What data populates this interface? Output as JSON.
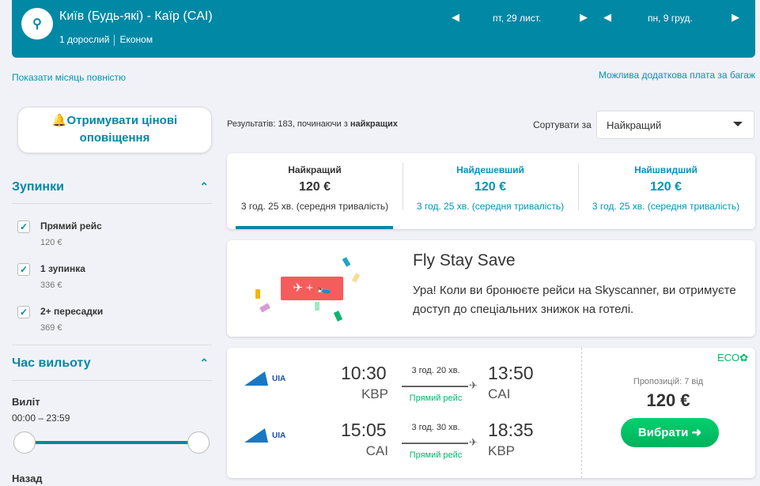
{
  "header": {
    "route": "Київ (Будь-які) - Каїр (CAI)",
    "passengers": "1 дорослий",
    "cabin": "Економ",
    "depart_date": "пт, 29 лист.",
    "return_date": "пн, 9 груд."
  },
  "links": {
    "show_month": "Показати місяць повністю",
    "baggage": "Можлива додаткова плата за багаж"
  },
  "sidebar": {
    "alert": "Отримувати цінові оповіщення",
    "stops_title": "Зупинки",
    "stops": [
      {
        "label": "Прямий рейс",
        "price": "120 €"
      },
      {
        "label": "1 зупинка",
        "price": "336 €"
      },
      {
        "label": "2+ пересадки",
        "price": "369 €"
      }
    ],
    "time_title": "Час вильоту",
    "outbound": "Виліт",
    "outbound_range": "00:00 – 23:59",
    "return": "Назад"
  },
  "results": {
    "summary_prefix": "Результатів: 183, починаючи з ",
    "summary_bold": "найкращих",
    "sort_label": "Сортувати за",
    "sort_value": "Найкращий"
  },
  "tabs": [
    {
      "title": "Найкращий",
      "price": "120 €",
      "duration": "3 год. 25 хв. (середня тривалість)"
    },
    {
      "title": "Найдешевший",
      "price": "120 €",
      "duration": "3 год. 25 хв. (середня тривалість)"
    },
    {
      "title": "Найшвидший",
      "price": "120 €",
      "duration": "3 год. 25 хв. (середня тривалість)"
    }
  ],
  "promo": {
    "title": "Fly Stay Save",
    "text": "Ура! Коли ви бронюєте рейси на Skyscanner, ви отримуєте доступ до спеціальних знижок на готелі."
  },
  "ticket": {
    "eco": "ECO",
    "offers": "Пропозицій: 7 від",
    "price": "120 €",
    "select": "Вибрати ➜",
    "legs": [
      {
        "airline": "UIA",
        "dep": "10:30",
        "dep_ap": "KBP",
        "dur": "3 год. 20 хв.",
        "type": "Прямий рейс",
        "arr": "13:50",
        "arr_ap": "CAI"
      },
      {
        "airline": "UIA",
        "dep": "15:05",
        "dep_ap": "CAI",
        "dur": "3 год. 30 хв.",
        "type": "Прямий рейс",
        "arr": "18:35",
        "arr_ap": "KBP"
      }
    ]
  },
  "colors": {
    "brand": "#0088a5",
    "green": "#00b96b",
    "promo_red": "#f55d5d"
  }
}
